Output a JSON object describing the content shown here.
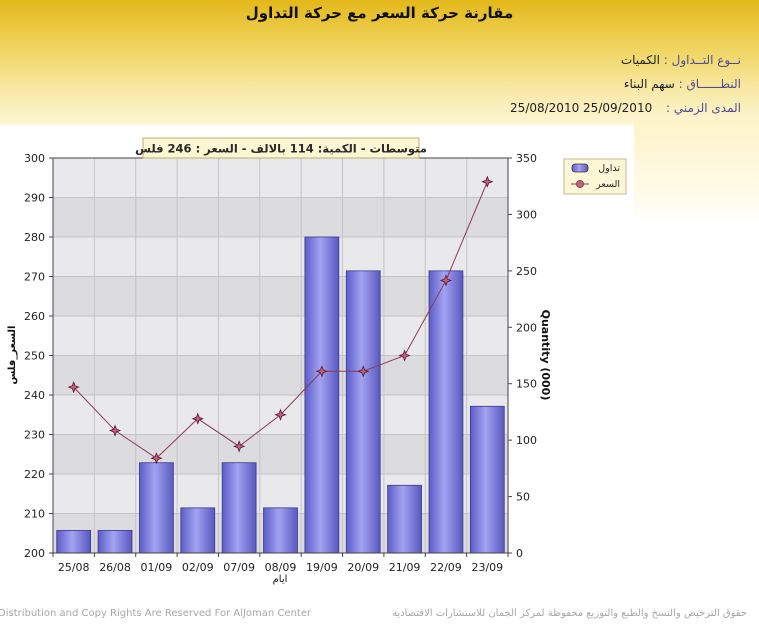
{
  "header": {
    "title": "مقارنة حركة السعر مع حركة التداول",
    "rows": [
      {
        "label": "نــوع التــداول :",
        "value": "الكميات"
      },
      {
        "label": "النطــــــاق :",
        "value": "سهم   البناء"
      },
      {
        "label": "المدى الزمني :",
        "value": "25/09/2010 25/08/2010"
      }
    ]
  },
  "colors": {
    "bar": "#8383e6",
    "line": "#8a3a52",
    "marker": "#c2607c"
  },
  "chart_data": {
    "type": "bar+line",
    "annotation": "متوسطات - الكمية: 114 بالالف  - السعر : 246 فلس",
    "categories": [
      "25/08",
      "26/08",
      "01/09",
      "02/09",
      "07/09",
      "08/09",
      "19/09",
      "20/09",
      "21/09",
      "22/09",
      "23/09"
    ],
    "series": [
      {
        "name": "تداول",
        "type": "bar",
        "axis": "right",
        "values": [
          20,
          20,
          80,
          40,
          80,
          40,
          280,
          250,
          60,
          250,
          130
        ]
      },
      {
        "name": "السعر",
        "type": "line",
        "axis": "left",
        "values": [
          242,
          231,
          224,
          234,
          227,
          235,
          246,
          246,
          250,
          269,
          294
        ]
      }
    ],
    "y_left": {
      "label": "السعر_فلس",
      "range": [
        200,
        300
      ],
      "ticks": [
        200,
        210,
        220,
        230,
        240,
        250,
        260,
        270,
        280,
        290,
        300
      ]
    },
    "y_right": {
      "label": "Quantity (000)",
      "range": [
        0,
        350
      ],
      "ticks": [
        0,
        50,
        100,
        150,
        200,
        250,
        300,
        350
      ]
    },
    "xlabel": "ايام",
    "legend_position": "top-right",
    "grid": true
  },
  "footer": {
    "left": "Distribution and Copy Rights Are Reserved For AlJoman Center",
    "right": "حقوق الترخيص والنسخ والطبع والتوزيع محفوظة لمركز الجمان للاستشارات الاقتصادية"
  }
}
